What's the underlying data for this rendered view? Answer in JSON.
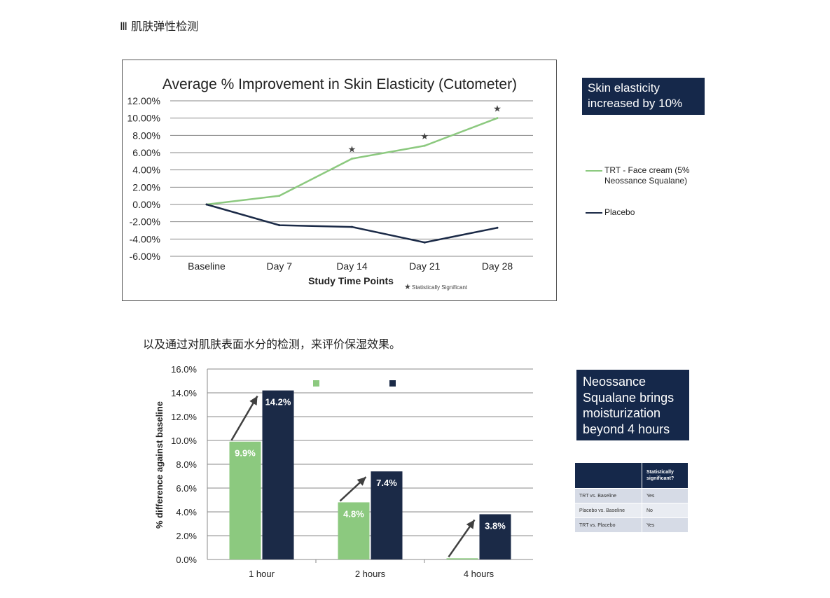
{
  "section_heading": "Ⅲ 肌肤弹性检测",
  "caption": "以及通过对肌肤表面水分的检测，来评价保湿效果。",
  "callout_elasticity": "Skin elasticity increased by 10%",
  "callout_moisture": "Neossance Squalane brings moisturization beyond 4 hours",
  "legend": {
    "trt": "TRT - Face cream (5% Neossance Squalane)",
    "placebo": "Placebo"
  },
  "significance_table": {
    "header": [
      "",
      "Statistically significant?"
    ],
    "rows": [
      [
        "TRT vs. Baseline",
        "Yes"
      ],
      [
        "Placebo vs. Baseline",
        "No"
      ],
      [
        "TRT vs. Placebo",
        "Yes"
      ]
    ]
  },
  "colors": {
    "trt": "#8cc97f",
    "placebo": "#1b2a47",
    "navy": "#15284a"
  },
  "chart_data": [
    {
      "type": "line",
      "title": "Average % Improvement in Skin Elasticity (Cutometer)",
      "xlabel": "Study Time Points",
      "ylabel": "",
      "categories": [
        "Baseline",
        "Day 7",
        "Day 14",
        "Day 21",
        "Day 28"
      ],
      "ylim": [
        -6,
        12
      ],
      "yticks": [
        12,
        10,
        8,
        6,
        4,
        2,
        0,
        -2,
        -4,
        -6
      ],
      "ytick_labels": [
        "12.00%",
        "10.00%",
        "8.00%",
        "6.00%",
        "4.00%",
        "2.00%",
        "0.00%",
        "-2.00%",
        "-4.00%",
        "-6.00%"
      ],
      "grid": true,
      "legend_position": "right",
      "series": [
        {
          "name": "TRT - Face cream (5% Neossance Squalane)",
          "values": [
            0,
            1.0,
            5.3,
            6.8,
            10.0
          ]
        },
        {
          "name": "Placebo",
          "values": [
            0,
            -2.4,
            -2.6,
            -4.4,
            -2.7
          ]
        }
      ],
      "significant": [
        false,
        false,
        true,
        true,
        true
      ],
      "annotation": "Statistically Significant"
    },
    {
      "type": "bar",
      "title": "",
      "xlabel": "",
      "ylabel": "% difference against baseline",
      "categories": [
        "1 hour",
        "2 hours",
        "4 hours"
      ],
      "ylim": [
        0,
        16
      ],
      "yticks": [
        0,
        2,
        4,
        6,
        8,
        10,
        12,
        14,
        16
      ],
      "ytick_labels": [
        "0.0%",
        "2.0%",
        "4.0%",
        "6.0%",
        "8.0%",
        "10.0%",
        "12.0%",
        "14.0%",
        "16.0%"
      ],
      "grid": true,
      "series": [
        {
          "values": [
            9.9,
            4.8,
            0.1
          ],
          "labels": [
            "9.9%",
            "4.8%",
            ""
          ]
        },
        {
          "values": [
            14.2,
            7.4,
            3.8
          ],
          "labels": [
            "14.2%",
            "7.4%",
            "3.8%"
          ]
        }
      ]
    }
  ]
}
